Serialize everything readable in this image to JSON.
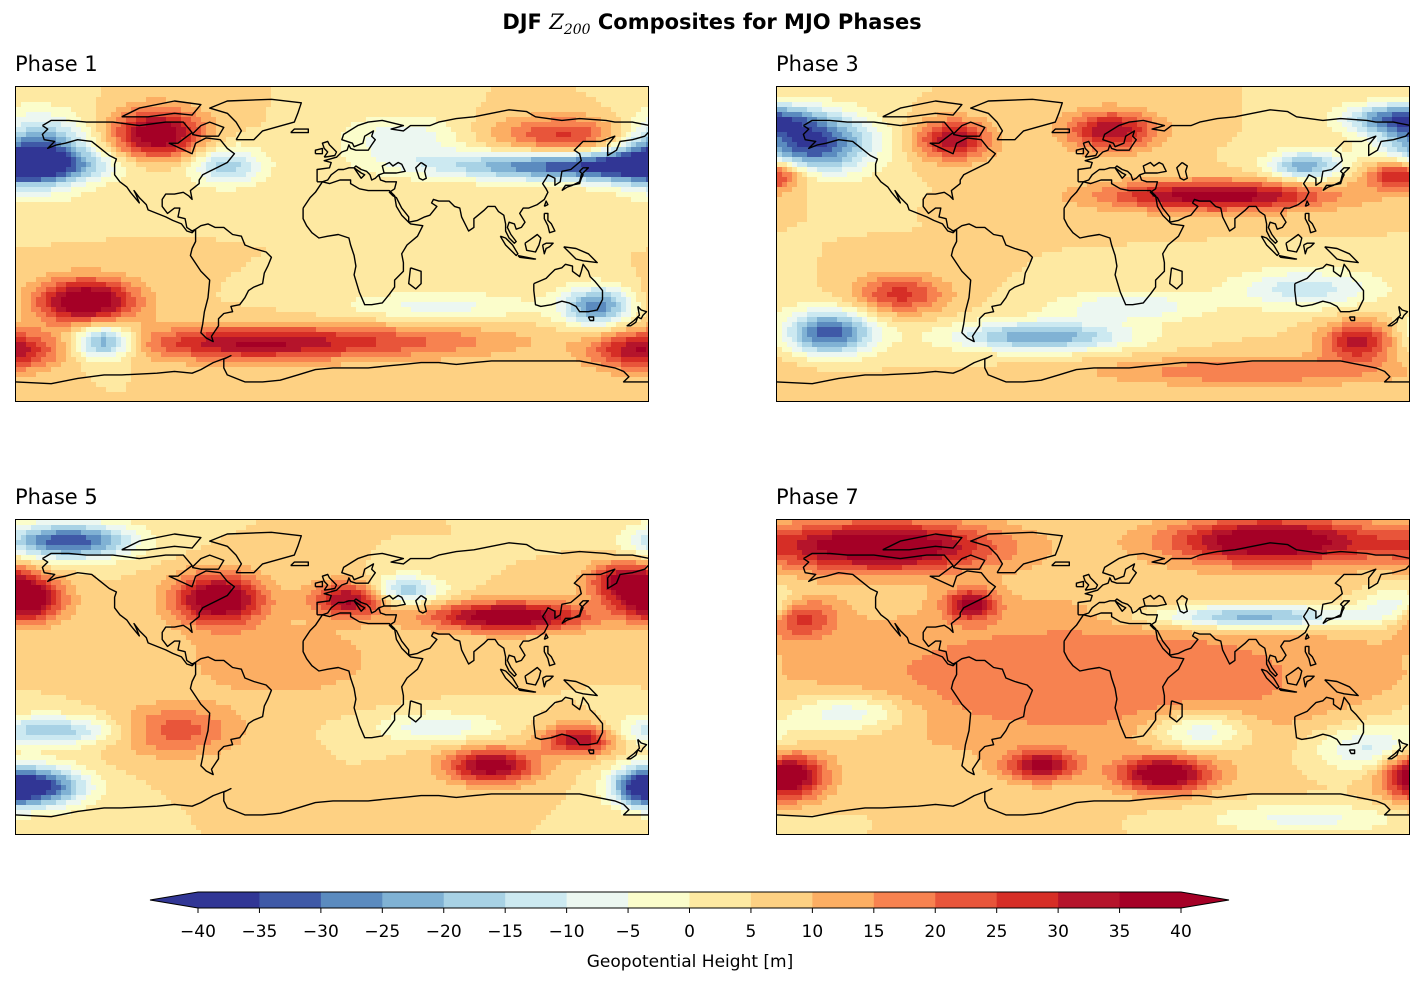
{
  "title": {
    "prefix": "DJF ",
    "symbol": "Z",
    "subscript": "200",
    "suffix": " Composites for MJO Phases"
  },
  "colors": {
    "levels": [
      "#313695",
      "#3f59a7",
      "#5b8bbf",
      "#80b2d4",
      "#a8d2e5",
      "#cce9f1",
      "#ecf7f1",
      "#fbfdcb",
      "#fee9a2",
      "#fed183",
      "#fcae63",
      "#f78250",
      "#e8553a",
      "#d62e26",
      "#b5142b",
      "#a50026"
    ],
    "coast": "#000000"
  },
  "panels": [
    {
      "title": "Phase 1",
      "blobs": [
        {
          "lon": -100,
          "lat": 63,
          "a": 38,
          "sx": 18,
          "sy": 10
        },
        {
          "lon": -170,
          "lat": 52,
          "a": -42,
          "sx": 22,
          "sy": 14
        },
        {
          "lon": 140,
          "lat": 45,
          "a": -40,
          "sx": 55,
          "sy": 6
        },
        {
          "lon": 135,
          "lat": 62,
          "a": 22,
          "sx": 30,
          "sy": 8
        },
        {
          "lon": -140,
          "lat": -32,
          "a": 40,
          "sx": 20,
          "sy": 9
        },
        {
          "lon": -130,
          "lat": -55,
          "a": -34,
          "sx": 12,
          "sy": 7
        },
        {
          "lon": -50,
          "lat": -56,
          "a": 28,
          "sx": 45,
          "sy": 7
        },
        {
          "lon": 150,
          "lat": -35,
          "a": -32,
          "sx": 14,
          "sy": 8
        },
        {
          "lon": 175,
          "lat": -60,
          "a": 30,
          "sx": 20,
          "sy": 8
        },
        {
          "lon": -60,
          "lat": 45,
          "a": -22,
          "sx": 15,
          "sy": 8
        },
        {
          "lon": 40,
          "lat": -55,
          "a": 14,
          "sx": 50,
          "sy": 7
        },
        {
          "lon": 60,
          "lat": -35,
          "a": -12,
          "sx": 40,
          "sy": 6
        },
        {
          "lon": 40,
          "lat": 60,
          "a": -14,
          "sx": 25,
          "sy": 10
        }
      ]
    },
    {
      "title": "Phase 3",
      "blobs": [
        {
          "lon": -160,
          "lat": 58,
          "a": -42,
          "sx": 24,
          "sy": 12
        },
        {
          "lon": -80,
          "lat": 60,
          "a": 30,
          "sx": 15,
          "sy": 8
        },
        {
          "lon": 10,
          "lat": 65,
          "a": 30,
          "sx": 18,
          "sy": 8
        },
        {
          "lon": 70,
          "lat": 28,
          "a": 35,
          "sx": 45,
          "sy": 6
        },
        {
          "lon": 175,
          "lat": 40,
          "a": 32,
          "sx": 14,
          "sy": 6
        },
        {
          "lon": 120,
          "lat": 45,
          "a": -28,
          "sx": 15,
          "sy": 6
        },
        {
          "lon": 170,
          "lat": 72,
          "a": -30,
          "sx": 20,
          "sy": 6
        },
        {
          "lon": -150,
          "lat": -50,
          "a": -38,
          "sx": 18,
          "sy": 9
        },
        {
          "lon": -30,
          "lat": -52,
          "a": -30,
          "sx": 35,
          "sy": 6
        },
        {
          "lon": -110,
          "lat": -28,
          "a": 22,
          "sx": 18,
          "sy": 8
        },
        {
          "lon": 150,
          "lat": -55,
          "a": 28,
          "sx": 14,
          "sy": 8
        },
        {
          "lon": 120,
          "lat": -25,
          "a": -18,
          "sx": 30,
          "sy": 8
        },
        {
          "lon": 20,
          "lat": -35,
          "a": -15,
          "sx": 30,
          "sy": 6
        },
        {
          "lon": 90,
          "lat": -72,
          "a": 15,
          "sx": 60,
          "sy": 6
        }
      ]
    },
    {
      "title": "Phase 5",
      "blobs": [
        {
          "lon": -150,
          "lat": 78,
          "a": -40,
          "sx": 25,
          "sy": 7
        },
        {
          "lon": -175,
          "lat": 45,
          "a": 40,
          "sx": 15,
          "sy": 9
        },
        {
          "lon": -65,
          "lat": 45,
          "a": 40,
          "sx": 18,
          "sy": 10
        },
        {
          "lon": 10,
          "lat": 45,
          "a": 32,
          "sx": 15,
          "sy": 7
        },
        {
          "lon": 100,
          "lat": 35,
          "a": 38,
          "sx": 32,
          "sy": 6
        },
        {
          "lon": 165,
          "lat": 55,
          "a": 30,
          "sx": 14,
          "sy": 8
        },
        {
          "lon": 40,
          "lat": 50,
          "a": -25,
          "sx": 15,
          "sy": 6
        },
        {
          "lon": -160,
          "lat": -30,
          "a": -24,
          "sx": 28,
          "sy": 6
        },
        {
          "lon": -165,
          "lat": -62,
          "a": -38,
          "sx": 18,
          "sy": 8
        },
        {
          "lon": 175,
          "lat": -62,
          "a": -34,
          "sx": 12,
          "sy": 8
        },
        {
          "lon": 90,
          "lat": -50,
          "a": 35,
          "sx": 18,
          "sy": 7
        },
        {
          "lon": 140,
          "lat": -35,
          "a": 32,
          "sx": 14,
          "sy": 6
        },
        {
          "lon": -90,
          "lat": -30,
          "a": 18,
          "sx": 25,
          "sy": 10
        },
        {
          "lon": 60,
          "lat": -28,
          "a": -14,
          "sx": 25,
          "sy": 6
        },
        {
          "lon": -30,
          "lat": 10,
          "a": 10,
          "sx": 40,
          "sy": 15
        }
      ]
    },
    {
      "title": "Phase 7",
      "blobs": [
        {
          "lon": -120,
          "lat": 75,
          "a": 40,
          "sx": 45,
          "sy": 10
        },
        {
          "lon": 100,
          "lat": 78,
          "a": 40,
          "sx": 40,
          "sy": 9
        },
        {
          "lon": -175,
          "lat": -55,
          "a": 42,
          "sx": 15,
          "sy": 10
        },
        {
          "lon": 40,
          "lat": -55,
          "a": 38,
          "sx": 18,
          "sy": 7
        },
        {
          "lon": -30,
          "lat": -50,
          "a": 30,
          "sx": 14,
          "sy": 6
        },
        {
          "lon": 90,
          "lat": 35,
          "a": -32,
          "sx": 40,
          "sy": 5
        },
        {
          "lon": -70,
          "lat": 42,
          "a": 30,
          "sx": 10,
          "sy": 6
        },
        {
          "lon": -170,
          "lat": 35,
          "a": 28,
          "sx": 15,
          "sy": 8
        },
        {
          "lon": -140,
          "lat": -20,
          "a": -18,
          "sx": 25,
          "sy": 8
        },
        {
          "lon": 60,
          "lat": -30,
          "a": -20,
          "sx": 20,
          "sy": 8
        },
        {
          "lon": 160,
          "lat": -40,
          "a": -20,
          "sx": 25,
          "sy": 10
        },
        {
          "lon": 175,
          "lat": 40,
          "a": -22,
          "sx": 15,
          "sy": 8
        },
        {
          "lon": 0,
          "lat": 0,
          "a": 15,
          "sx": 120,
          "sy": 30
        },
        {
          "lon": 120,
          "lat": -80,
          "a": -12,
          "sx": 40,
          "sy": 6
        }
      ]
    }
  ],
  "colorbar": {
    "ticks": [
      "−40",
      "−35",
      "−30",
      "−25",
      "−20",
      "−15",
      "−10",
      "−5",
      "0",
      "5",
      "10",
      "15",
      "20",
      "25",
      "30",
      "35",
      "40"
    ],
    "label": "Geopotential Height [m]"
  }
}
